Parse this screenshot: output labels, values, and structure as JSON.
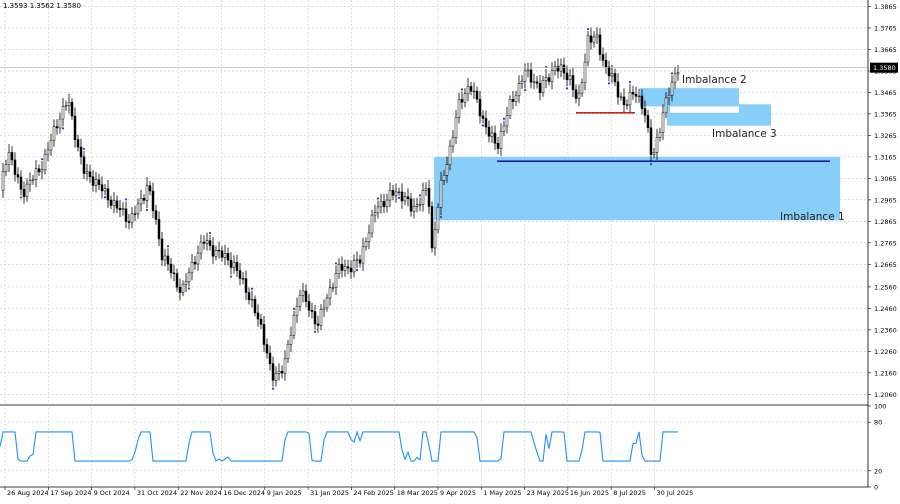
{
  "header": {
    "ohlc_label": "1.3593 1.3562 1.3580"
  },
  "chart_data": [
    {
      "type": "candlestick",
      "ylim": [
        1.2015,
        1.3895
      ],
      "y_ticks": [
        "1.3865",
        "1.3765",
        "1.3665",
        "1.3565",
        "1.3465",
        "1.3365",
        "1.3265",
        "1.3165",
        "1.3065",
        "1.2965",
        "1.2865",
        "1.2765",
        "1.2665",
        "1.2560",
        "1.2460",
        "1.2360",
        "1.2260",
        "1.2160",
        "1.2060"
      ],
      "x_tick_labels": [
        "26 Aug 2024",
        "17 Sep 2024",
        "9 Oct 2024",
        "31 Oct 2024",
        "22 Nov 2024",
        "16 Dec 2024",
        "9 Jan 2025",
        "31 Jan 2025",
        "24 Feb 2025",
        "18 Mar 2025",
        "9 Apr 2025",
        "1 May 2025",
        "23 May 2025",
        "16 Jun 2025",
        "8 Jul 2025",
        "30 Jul 2025"
      ],
      "current_price": "1.3580",
      "grid": true,
      "zones": [
        {
          "label": "Imbalance 1",
          "y_top": 1.3165,
          "y_bottom": 1.287,
          "color": "#87CEFA"
        },
        {
          "label": "Imbalance 2",
          "y_top": 1.3485,
          "y_bottom": 1.34,
          "color": "#87CEFA"
        },
        {
          "label": "Imbalance 3",
          "y_top": 1.341,
          "y_bottom": 1.331,
          "color": "#87CEFA"
        }
      ],
      "levels": [
        {
          "y": 1.3145,
          "color": "#00008B"
        },
        {
          "y": 1.337,
          "color": "#CC0000"
        }
      ]
    },
    {
      "type": "line",
      "ylim": [
        0,
        100
      ],
      "y_ticks": [
        "100",
        "80",
        "20",
        "0"
      ],
      "series_color": "#1E90FF"
    }
  ]
}
